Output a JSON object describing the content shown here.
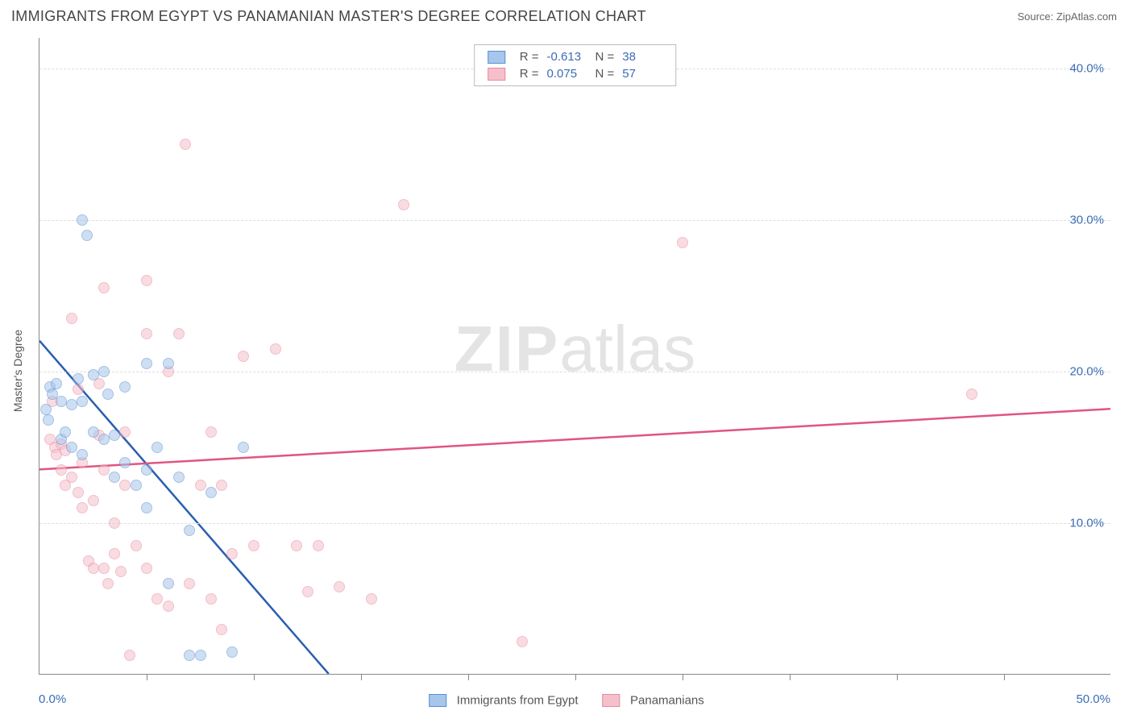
{
  "title": "IMMIGRANTS FROM EGYPT VS PANAMANIAN MASTER'S DEGREE CORRELATION CHART",
  "source": "Source: ZipAtlas.com",
  "watermark_zip": "ZIP",
  "watermark_atlas": "atlas",
  "chart": {
    "type": "scatter",
    "xlim": [
      0,
      50
    ],
    "ylim": [
      0,
      42
    ],
    "x_min_label": "0.0%",
    "x_max_label": "50.0%",
    "y_grid": [
      10,
      20,
      30,
      40
    ],
    "y_tick_labels": [
      "10.0%",
      "20.0%",
      "30.0%",
      "40.0%"
    ],
    "x_ticks": [
      5,
      10,
      15,
      20,
      25,
      30,
      35,
      40,
      45
    ],
    "y_axis_label": "Master's Degree",
    "background_color": "#ffffff",
    "grid_color": "#dddddd",
    "axis_color": "#888888",
    "tick_label_color": "#3b6db5",
    "marker_radius": 7,
    "marker_opacity": 0.55,
    "series": [
      {
        "name": "Immigrants from Egypt",
        "fill": "#a7c6ec",
        "stroke": "#5a8fd0",
        "trend_color": "#2a5fb0",
        "R": "-0.613",
        "N": "38",
        "trend": {
          "x1": 0,
          "y1": 22.0,
          "x2": 13.5,
          "y2": 0
        },
        "points": [
          [
            0.5,
            19.0
          ],
          [
            0.6,
            18.5
          ],
          [
            0.8,
            19.2
          ],
          [
            1.0,
            18.0
          ],
          [
            1.0,
            15.5
          ],
          [
            1.2,
            16.0
          ],
          [
            1.5,
            17.8
          ],
          [
            1.5,
            15.0
          ],
          [
            1.8,
            19.5
          ],
          [
            2.0,
            18.0
          ],
          [
            2.0,
            14.5
          ],
          [
            2.0,
            30.0
          ],
          [
            2.2,
            29.0
          ],
          [
            2.5,
            16.0
          ],
          [
            2.5,
            19.8
          ],
          [
            3.0,
            20.0
          ],
          [
            3.0,
            15.5
          ],
          [
            3.2,
            18.5
          ],
          [
            3.5,
            13.0
          ],
          [
            3.5,
            15.8
          ],
          [
            4.0,
            19.0
          ],
          [
            4.0,
            14.0
          ],
          [
            4.5,
            12.5
          ],
          [
            5.0,
            20.5
          ],
          [
            5.0,
            11.0
          ],
          [
            5.0,
            13.5
          ],
          [
            5.5,
            15.0
          ],
          [
            6.0,
            20.5
          ],
          [
            6.0,
            6.0
          ],
          [
            6.5,
            13.0
          ],
          [
            7.0,
            1.3
          ],
          [
            7.0,
            9.5
          ],
          [
            7.5,
            1.3
          ],
          [
            8.0,
            12.0
          ],
          [
            9.0,
            1.5
          ],
          [
            9.5,
            15.0
          ],
          [
            0.3,
            17.5
          ],
          [
            0.4,
            16.8
          ]
        ]
      },
      {
        "name": "Panamanians",
        "fill": "#f5c0cb",
        "stroke": "#e68aa0",
        "trend_color": "#e05580",
        "R": "0.075",
        "N": "57",
        "trend": {
          "x1": 0,
          "y1": 13.5,
          "x2": 50,
          "y2": 17.5
        },
        "points": [
          [
            0.5,
            15.5
          ],
          [
            0.7,
            15.0
          ],
          [
            0.8,
            14.5
          ],
          [
            1.0,
            15.2
          ],
          [
            1.0,
            13.5
          ],
          [
            1.2,
            12.5
          ],
          [
            1.2,
            14.8
          ],
          [
            1.5,
            23.5
          ],
          [
            1.5,
            13.0
          ],
          [
            1.8,
            12.0
          ],
          [
            2.0,
            14.0
          ],
          [
            2.0,
            11.0
          ],
          [
            2.3,
            7.5
          ],
          [
            2.5,
            11.5
          ],
          [
            2.5,
            7.0
          ],
          [
            2.8,
            15.8
          ],
          [
            3.0,
            25.5
          ],
          [
            3.0,
            7.0
          ],
          [
            3.0,
            13.5
          ],
          [
            3.2,
            6.0
          ],
          [
            3.5,
            10.0
          ],
          [
            3.5,
            8.0
          ],
          [
            4.0,
            16.0
          ],
          [
            4.0,
            12.5
          ],
          [
            4.2,
            1.3
          ],
          [
            4.5,
            8.5
          ],
          [
            5.0,
            7.0
          ],
          [
            5.0,
            22.5
          ],
          [
            5.0,
            26.0
          ],
          [
            5.5,
            5.0
          ],
          [
            6.0,
            20.0
          ],
          [
            6.0,
            4.5
          ],
          [
            6.5,
            22.5
          ],
          [
            6.8,
            35.0
          ],
          [
            7.0,
            6.0
          ],
          [
            7.5,
            12.5
          ],
          [
            8.0,
            16.0
          ],
          [
            8.0,
            5.0
          ],
          [
            8.5,
            3.0
          ],
          [
            8.5,
            12.5
          ],
          [
            9.0,
            8.0
          ],
          [
            9.5,
            21.0
          ],
          [
            10.0,
            8.5
          ],
          [
            11.0,
            21.5
          ],
          [
            12.0,
            8.5
          ],
          [
            12.5,
            5.5
          ],
          [
            13.0,
            8.5
          ],
          [
            14.0,
            5.8
          ],
          [
            15.5,
            5.0
          ],
          [
            17.0,
            31.0
          ],
          [
            22.5,
            2.2
          ],
          [
            30.0,
            28.5
          ],
          [
            43.5,
            18.5
          ],
          [
            1.8,
            18.8
          ],
          [
            2.8,
            19.2
          ],
          [
            0.6,
            18.0
          ],
          [
            3.8,
            6.8
          ]
        ]
      }
    ]
  },
  "legend_labels": {
    "r_prefix": "R =",
    "n_prefix": "N ="
  }
}
